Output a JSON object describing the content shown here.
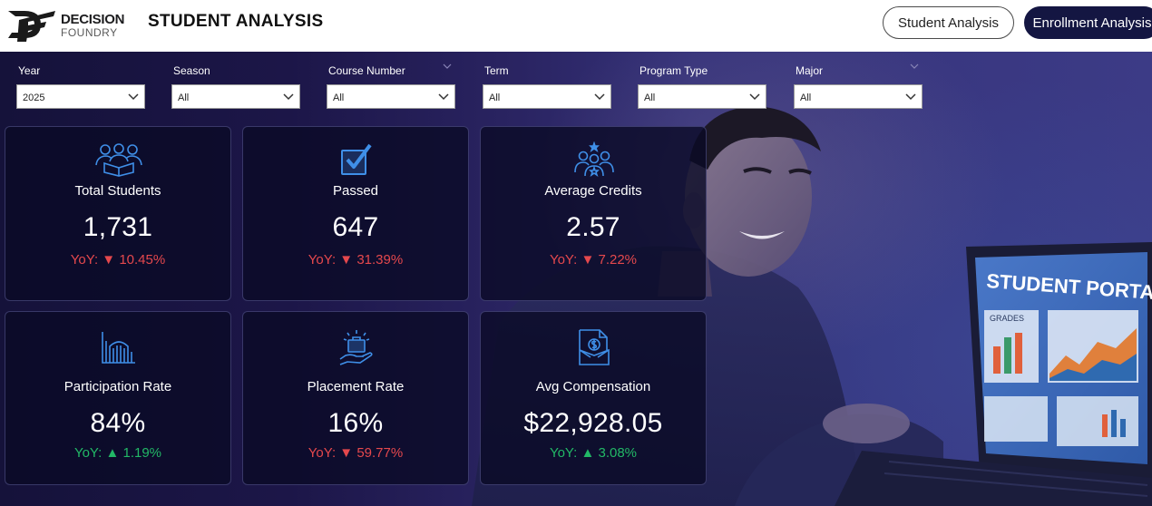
{
  "header": {
    "logo_line1": "DECISION",
    "logo_line2": "FOUNDRY",
    "logo_mark": "df-logo",
    "title": "STUDENT ANALYSIS"
  },
  "nav": {
    "student_analysis": "Student Analysis",
    "enrollment_analysis": "Enrollment Analysis"
  },
  "filters": [
    {
      "label": "Year",
      "value": "2025"
    },
    {
      "label": "Season",
      "value": "All"
    },
    {
      "label": "Course Number",
      "value": "All"
    },
    {
      "label": "Term",
      "value": "All"
    },
    {
      "label": "Program Type",
      "value": "All"
    },
    {
      "label": "Major",
      "value": "All"
    }
  ],
  "kpis": [
    {
      "label": "Total Students",
      "value": "1,731",
      "yoy_prefix": "YoY:",
      "yoy_arrow": "▼",
      "yoy_value": "10.45%",
      "direction": "down",
      "icon": "students-group-icon"
    },
    {
      "label": "Passed",
      "value": "647",
      "yoy_prefix": "YoY:",
      "yoy_arrow": "▼",
      "yoy_value": "31.39%",
      "direction": "down",
      "icon": "checkbox-icon"
    },
    {
      "label": "Average Credits",
      "value": "2.57",
      "yoy_prefix": "YoY:",
      "yoy_arrow": "▼",
      "yoy_value": "7.22%",
      "direction": "down",
      "icon": "group-star-icon"
    },
    {
      "label": "Participation Rate",
      "value": "84%",
      "yoy_prefix": "YoY:",
      "yoy_arrow": "▲",
      "yoy_value": "1.19%",
      "direction": "up",
      "icon": "building-icon"
    },
    {
      "label": "Placement Rate",
      "value": "16%",
      "yoy_prefix": "YoY:",
      "yoy_arrow": "▼",
      "yoy_value": "59.77%",
      "direction": "down",
      "icon": "hand-briefcase-icon"
    },
    {
      "label": "Avg Compensation",
      "value": "$22,928.05",
      "yoy_prefix": "YoY:",
      "yoy_arrow": "▲",
      "yoy_value": "3.08%",
      "direction": "up",
      "icon": "dollar-document-icon"
    }
  ],
  "background_image": {
    "screen_title": "STUDENT PORTAL",
    "panel_title": "GRADES"
  },
  "colors": {
    "accent_navy": "#141642",
    "icon_blue": "#3f8fe8",
    "down_red": "#e5484d",
    "up_green": "#22b866"
  }
}
